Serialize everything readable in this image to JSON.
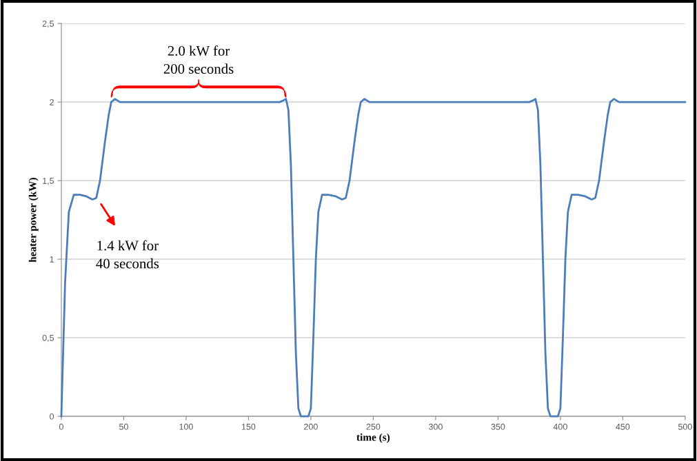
{
  "chart_data": {
    "type": "line",
    "xlabel": "time (s)",
    "ylabel": "heater power (kW)",
    "x": [
      0,
      3,
      6,
      10,
      15,
      20,
      25,
      28,
      31,
      35,
      38,
      40,
      43,
      47,
      50,
      100,
      175,
      178,
      180,
      182,
      184,
      186,
      188,
      190,
      192,
      195,
      198,
      200,
      202,
      204,
      206,
      209,
      214,
      220,
      225,
      228,
      231,
      235,
      238,
      240,
      243,
      247,
      250,
      300,
      375,
      378,
      380,
      382,
      384,
      386,
      388,
      390,
      392,
      395,
      398,
      400,
      402,
      404,
      406,
      409,
      414,
      420,
      425,
      428,
      431,
      435,
      438,
      440,
      443,
      447,
      450,
      500
    ],
    "series": [
      {
        "color": "#4a7ebb",
        "values": [
          0,
          0.85,
          1.3,
          1.41,
          1.41,
          1.4,
          1.38,
          1.39,
          1.5,
          1.75,
          1.92,
          2.0,
          2.02,
          2.0,
          2.0,
          2.0,
          2.0,
          2.01,
          2.02,
          1.95,
          1.6,
          1.0,
          0.4,
          0.05,
          0,
          0,
          0,
          0.05,
          0.5,
          1.0,
          1.3,
          1.41,
          1.41,
          1.4,
          1.38,
          1.39,
          1.5,
          1.75,
          1.92,
          2.0,
          2.02,
          2.0,
          2.0,
          2.0,
          2.0,
          2.01,
          2.02,
          1.95,
          1.6,
          1.0,
          0.4,
          0.05,
          0,
          0,
          0,
          0.05,
          0.5,
          1.0,
          1.3,
          1.41,
          1.41,
          1.4,
          1.38,
          1.39,
          1.5,
          1.75,
          1.92,
          2.0,
          2.02,
          2.0,
          2.0,
          2.0
        ]
      }
    ],
    "xlim": [
      0,
      500
    ],
    "xticks": [
      0,
      50,
      100,
      150,
      200,
      250,
      300,
      350,
      400,
      450,
      500
    ],
    "ylim": [
      0,
      2.5
    ],
    "yticks": [
      0,
      {
        "value": 0.5,
        "label": "0,5"
      },
      1,
      {
        "value": 1.5,
        "label": "1,5"
      },
      2,
      {
        "value": 2.5,
        "label": "2,5"
      }
    ],
    "grid": "y",
    "marker": "none",
    "line_style": "solid",
    "annotations": [
      {
        "text": "2.0 kW for\n200 seconds",
        "x": 110,
        "y": 2.0
      },
      {
        "text": "1.4 kW for\n40 seconds",
        "x": 30,
        "y": 1.38
      }
    ]
  }
}
